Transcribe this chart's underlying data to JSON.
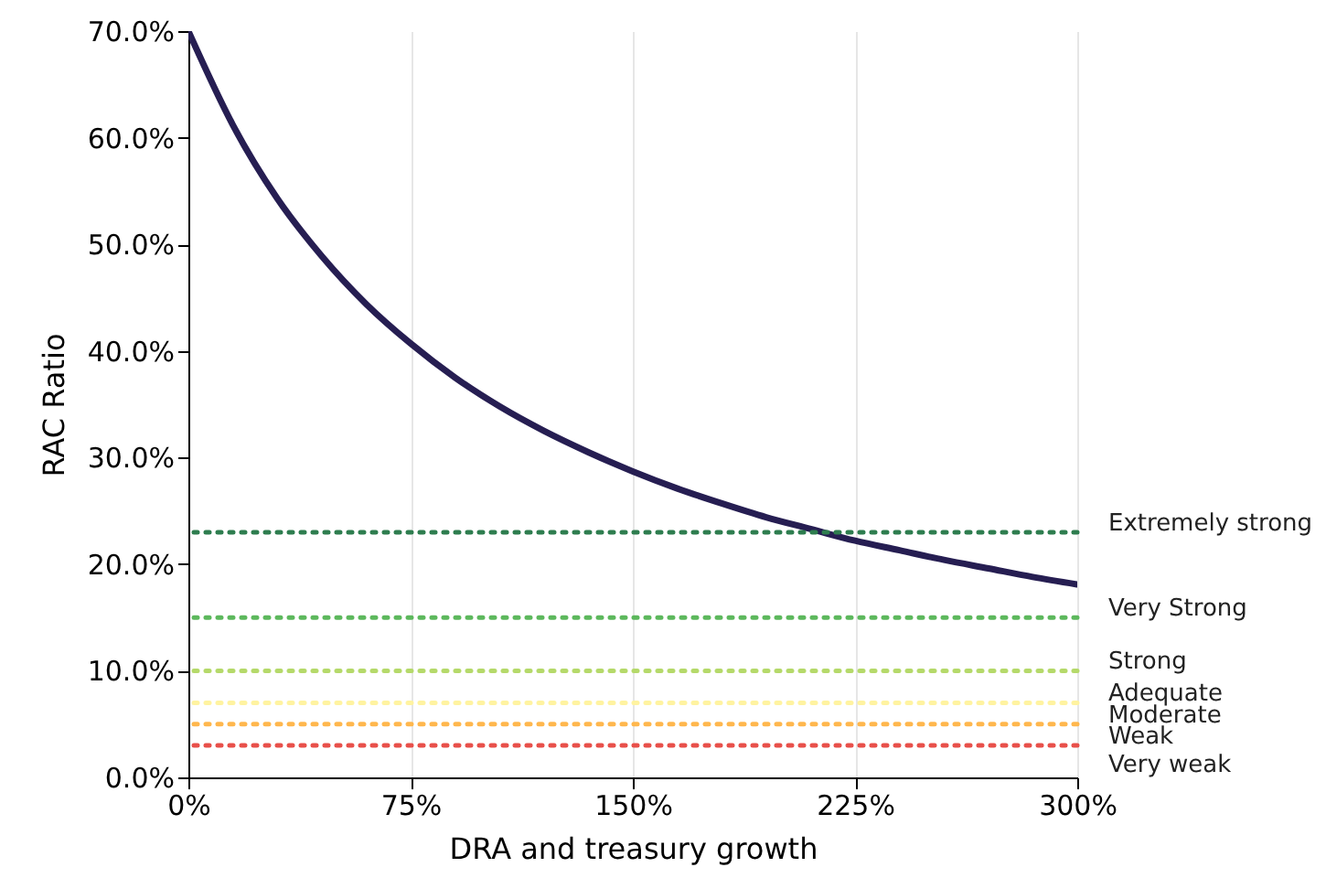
{
  "chart_data": {
    "type": "line",
    "xlabel": "DRA and treasury growth",
    "ylabel": "RAC Ratio",
    "x": [
      0,
      15,
      30,
      45,
      60,
      75,
      90,
      105,
      120,
      135,
      150,
      165,
      180,
      195,
      210,
      225,
      240,
      255,
      270,
      285,
      300
    ],
    "series": [
      {
        "color": "#261e52",
        "values": [
          70.0,
          61.2,
          54.3,
          48.9,
          44.4,
          40.7,
          37.5,
          34.8,
          32.5,
          30.5,
          28.7,
          27.1,
          25.7,
          24.4,
          23.3,
          22.2,
          21.3,
          20.4,
          19.6,
          18.8,
          18.1
        ]
      }
    ],
    "xlim": [
      0,
      300
    ],
    "xticks": [
      {
        "value": 0,
        "label": "0%"
      },
      {
        "value": 75,
        "label": "75%"
      },
      {
        "value": 150,
        "label": "150%"
      },
      {
        "value": 225,
        "label": "225%"
      },
      {
        "value": 300,
        "label": "300%"
      }
    ],
    "ylim": [
      0,
      70
    ],
    "yticks": [
      {
        "value": 0,
        "label": "0.0%"
      },
      {
        "value": 10,
        "label": "10.0%"
      },
      {
        "value": 20,
        "label": "20.0%"
      },
      {
        "value": 30,
        "label": "30.0%"
      },
      {
        "value": 40,
        "label": "40.0%"
      },
      {
        "value": 50,
        "label": "50.0%"
      },
      {
        "value": 60,
        "label": "60.0%"
      },
      {
        "value": 70,
        "label": "70.0%"
      }
    ],
    "grid": "x",
    "marker": "none",
    "line_style": "solid",
    "ref_lines": [
      {
        "axis": "y",
        "value": 23,
        "label": "Extremely strong",
        "color": "#2e7d4f",
        "line_style": "dotted"
      },
      {
        "axis": "y",
        "value": 15,
        "label": "Very Strong",
        "color": "#5cb85c",
        "line_style": "dotted"
      },
      {
        "axis": "y",
        "value": 10,
        "label": "Strong",
        "color": "#b5d96a",
        "line_style": "dotted"
      },
      {
        "axis": "y",
        "value": 7,
        "label": "Adequate",
        "color": "#fff3a0",
        "line_style": "dotted"
      },
      {
        "axis": "y",
        "value": 5,
        "label": "Moderate",
        "color": "#ffb74d",
        "line_style": "dotted"
      },
      {
        "axis": "y",
        "value": 3,
        "label": "Weak",
        "color": "#e8504a",
        "line_style": "dotted"
      }
    ],
    "annotations": [
      "Very weak"
    ]
  }
}
